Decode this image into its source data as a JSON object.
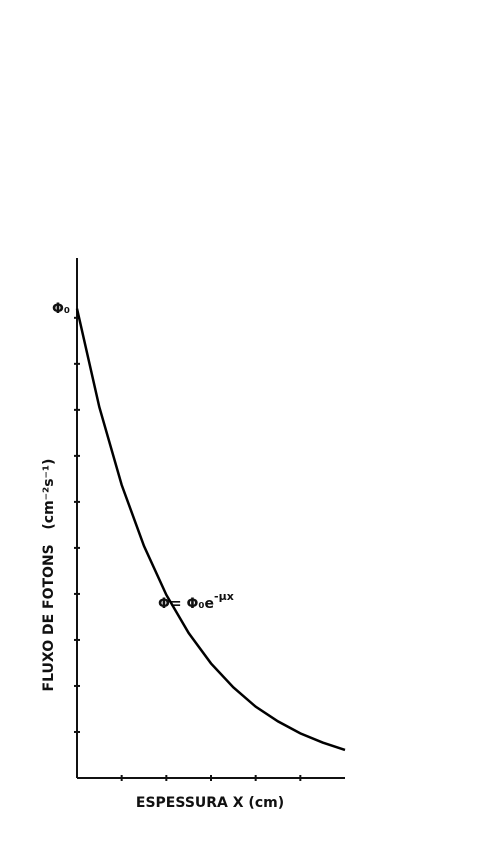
{
  "chart_data": {
    "type": "line",
    "xlabel": "ESPESSURA X (cm)",
    "ylabel": "FLUXO DE FOTONS   (cm⁻²s⁻¹)",
    "y0_label": "Φ₀",
    "annotation": {
      "base": "Φ= Φ₀e",
      "exponent": "-μx"
    },
    "x": [
      0,
      0.5,
      1,
      1.5,
      2,
      2.5,
      3,
      3.5,
      4,
      4.5,
      5,
      5.5,
      6
    ],
    "values": [
      10.2,
      8.06,
      6.37,
      5.04,
      3.98,
      3.15,
      2.49,
      1.97,
      1.55,
      1.23,
      0.97,
      0.77,
      0.61
    ],
    "color": "#000000",
    "xlim": [
      0,
      6
    ],
    "ylim": [
      0,
      11.3
    ],
    "xticks": [
      1,
      2,
      3,
      4,
      5
    ],
    "yticks": [
      1,
      2,
      3,
      4,
      5,
      6,
      7,
      8,
      9,
      10
    ]
  }
}
